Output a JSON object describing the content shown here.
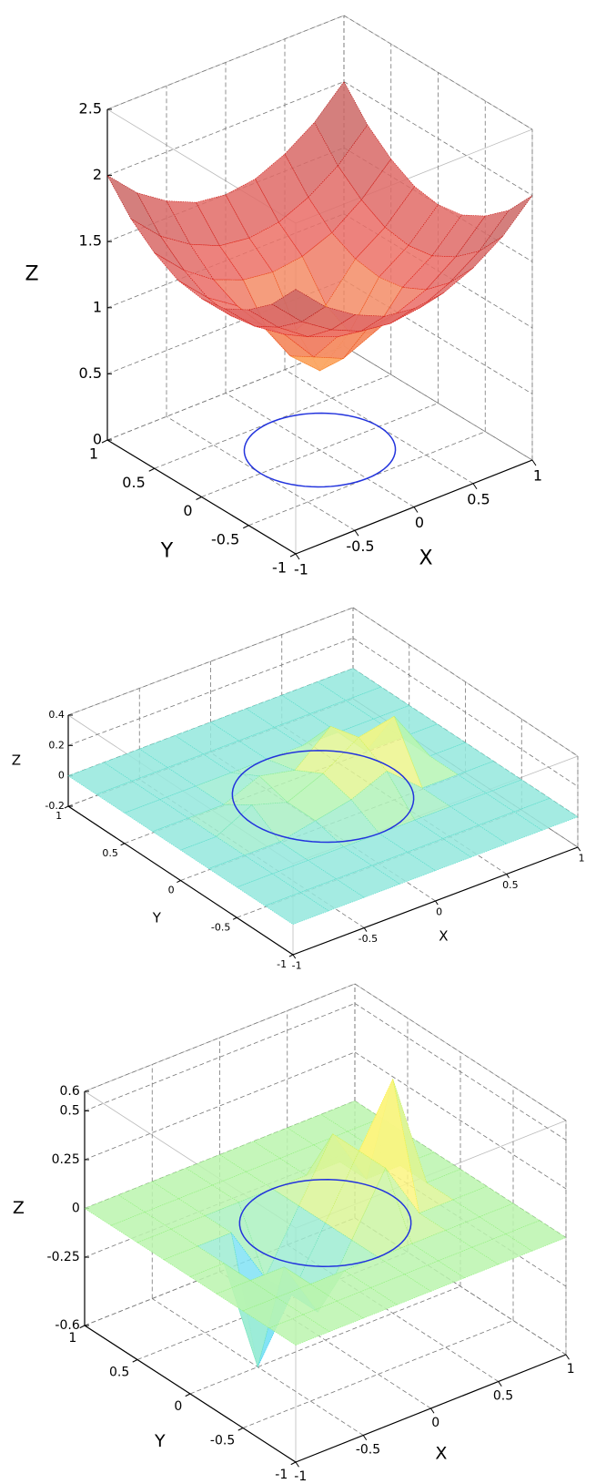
{
  "chart_data": [
    {
      "type": "surface3d",
      "xlabel": "X",
      "ylabel": "Y",
      "zlabel": "Z",
      "colormap": "hot",
      "grid": true,
      "xlim": [
        -1,
        1
      ],
      "ylim": [
        -1,
        1
      ],
      "zlim": [
        0,
        2.5
      ],
      "xticks": [
        -1,
        -0.5,
        0,
        0.5,
        1
      ],
      "yticks": [
        -1,
        -0.5,
        0,
        0.5,
        1
      ],
      "zticks": [
        0,
        0.5,
        1,
        1.5,
        2,
        2.5
      ],
      "x": [
        -1,
        -0.75,
        -0.5,
        -0.25,
        0,
        0.25,
        0.5,
        0.75,
        1
      ],
      "y": [
        -1,
        -0.75,
        -0.5,
        -0.25,
        0,
        0.25,
        0.5,
        0.75,
        1
      ],
      "z": [
        [
          2,
          1.78,
          1.63,
          1.53,
          1.5,
          1.53,
          1.63,
          1.78,
          2
        ],
        [
          1.78,
          1.56,
          1.41,
          1.31,
          1.28,
          1.31,
          1.41,
          1.56,
          1.78
        ],
        [
          1.63,
          1.41,
          1.25,
          1.16,
          1.13,
          1.16,
          1.25,
          1.41,
          1.63
        ],
        [
          1.53,
          1.31,
          1.16,
          0.9,
          0.8,
          0.9,
          1.16,
          1.31,
          1.53
        ],
        [
          1.5,
          1.28,
          1.13,
          0.8,
          0.6,
          0.8,
          1.13,
          1.28,
          1.5
        ],
        [
          1.53,
          1.31,
          1.16,
          0.9,
          0.8,
          0.9,
          1.16,
          1.31,
          1.53
        ],
        [
          1.63,
          1.41,
          1.25,
          1.16,
          1.13,
          1.16,
          1.25,
          1.41,
          1.63
        ],
        [
          1.78,
          1.56,
          1.41,
          1.31,
          1.28,
          1.31,
          1.41,
          1.56,
          1.78
        ],
        [
          2,
          1.78,
          1.63,
          1.53,
          1.5,
          1.53,
          1.63,
          1.78,
          2
        ]
      ],
      "circle_radius": 0.5,
      "circle_z": 0,
      "circle_color": "#2233dd"
    },
    {
      "type": "surface3d",
      "xlabel": "X",
      "ylabel": "Y",
      "zlabel": "Z",
      "colormap": "jet",
      "grid": true,
      "xlim": [
        -1,
        1
      ],
      "ylim": [
        -1,
        1
      ],
      "zlim": [
        -0.2,
        0.4
      ],
      "xticks": [
        -1,
        -0.5,
        0,
        0.5,
        1
      ],
      "yticks": [
        -1,
        -0.5,
        0,
        0.5,
        1
      ],
      "zticks": [
        -0.2,
        0,
        0.2,
        0.4
      ],
      "x": [
        -1,
        -0.75,
        -0.5,
        -0.25,
        0,
        0.25,
        0.5,
        0.75,
        1
      ],
      "y": [
        -1,
        -0.75,
        -0.5,
        -0.25,
        0,
        0.25,
        0.5,
        0.75,
        1
      ],
      "z": [
        [
          0,
          0,
          0,
          0,
          0,
          0,
          0,
          0,
          0
        ],
        [
          0,
          0,
          0,
          0,
          0,
          0,
          0,
          0,
          0
        ],
        [
          0,
          0,
          0,
          0,
          0,
          0,
          0,
          0,
          0
        ],
        [
          0,
          0,
          0,
          0.05,
          0.1,
          0.2,
          0,
          0,
          0
        ],
        [
          0,
          0,
          0.12,
          0.05,
          0.15,
          0.3,
          0.35,
          0,
          0
        ],
        [
          0,
          0,
          0,
          0.1,
          0.05,
          0.25,
          0,
          0,
          0
        ],
        [
          0,
          0,
          0,
          0,
          0,
          0,
          0,
          0,
          0
        ],
        [
          0,
          0,
          0,
          0,
          0,
          0,
          0,
          0,
          0
        ],
        [
          0,
          0,
          0,
          0,
          0,
          0,
          0,
          0,
          0
        ]
      ],
      "circle_radius": 0.5,
      "circle_z": 0,
      "circle_color": "#2233dd"
    },
    {
      "type": "surface3d",
      "xlabel": "X",
      "ylabel": "Y",
      "zlabel": "Z",
      "colormap": "jet",
      "grid": true,
      "xlim": [
        -1,
        1
      ],
      "ylim": [
        -1,
        1
      ],
      "zlim": [
        -0.6,
        0.6
      ],
      "xticks": [
        -1,
        -0.5,
        0,
        0.5,
        1
      ],
      "yticks": [
        -1,
        -0.5,
        0,
        0.5,
        1
      ],
      "zticks": [
        -0.6,
        -0.25,
        0,
        0.25,
        0.5,
        0.6
      ],
      "x": [
        -1,
        -0.75,
        -0.5,
        -0.25,
        0,
        0.25,
        0.5,
        0.75,
        1
      ],
      "y": [
        -1,
        -0.75,
        -0.5,
        -0.25,
        0,
        0.25,
        0.5,
        0.75,
        1
      ],
      "z": [
        [
          0,
          0,
          0,
          0,
          0,
          0,
          0,
          0,
          0
        ],
        [
          0,
          0,
          0,
          0,
          0,
          0,
          0,
          0,
          0
        ],
        [
          0,
          0,
          0,
          0,
          0,
          0,
          0,
          0,
          0
        ],
        [
          0,
          0,
          0,
          -0.3,
          0,
          0.3,
          0,
          0,
          0
        ],
        [
          0,
          0,
          -0.6,
          -0.3,
          0,
          0.3,
          0.6,
          0,
          0
        ],
        [
          0,
          0,
          0,
          -0.3,
          0,
          0.3,
          0,
          0,
          0
        ],
        [
          0,
          0,
          0,
          0,
          0,
          0,
          0,
          0,
          0
        ],
        [
          0,
          0,
          0,
          0,
          0,
          0,
          0,
          0,
          0
        ],
        [
          0,
          0,
          0,
          0,
          0,
          0,
          0,
          0,
          0
        ]
      ],
      "circle_radius": 0.5,
      "circle_z": 0,
      "circle_color": "#2233dd"
    }
  ]
}
